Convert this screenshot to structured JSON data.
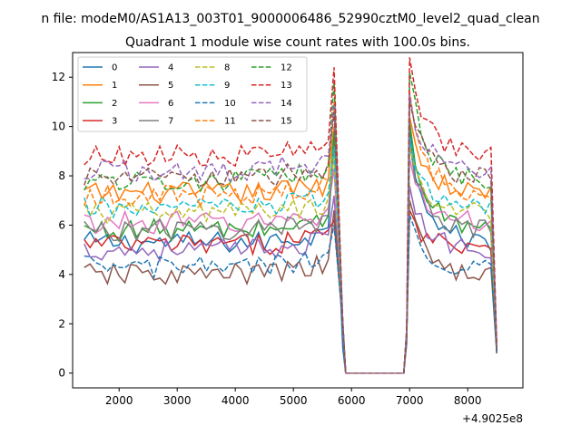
{
  "figure": {
    "suptitle": "n file: modeM0/AS1A13_003T01_9000006486_52990cztM0_level2_quad_clean",
    "title": "Quadrant 1 module wise count rates with 100.0s bins."
  },
  "chart_data": {
    "type": "line",
    "title": "Quadrant 1 module wise count rates with 100.0s bins.",
    "xlabel": "",
    "ylabel": "",
    "x_offset_label": "+4.9025e8",
    "xlim": [
      1200,
      8950
    ],
    "ylim": [
      -0.6,
      13.0
    ],
    "x_ticks": [
      2000,
      3000,
      4000,
      5000,
      6000,
      7000,
      8000
    ],
    "y_ticks": [
      0,
      2,
      4,
      6,
      8,
      10,
      12
    ],
    "x_tick_labels": [
      "2000",
      "3000",
      "4000",
      "5000",
      "6000",
      "7000",
      "8000"
    ],
    "y_tick_labels": [
      "0",
      "2",
      "4",
      "6",
      "8",
      "10",
      "12"
    ],
    "grid": false,
    "legend": {
      "placement": "upper-left",
      "columns": 4
    },
    "segments": {
      "seg1": {
        "start": 1400,
        "step": 100,
        "count": 44
      },
      "gap": [
        5900,
        6900
      ],
      "seg2": {
        "start": 7000,
        "step": 100,
        "count": 16
      }
    },
    "series": [
      {
        "name": "0",
        "color": "#1f77b4",
        "dash": "solid",
        "base": 5.3,
        "peak": 9.5,
        "drop": 1.0,
        "rise": 1.2,
        "end": 0.8
      },
      {
        "name": "1",
        "color": "#ff7f0e",
        "dash": "solid",
        "base": 7.3,
        "peak": 10.0,
        "drop": 2.0,
        "rise": 1.6,
        "end": 1.0
      },
      {
        "name": "2",
        "color": "#2ca02c",
        "dash": "solid",
        "base": 5.8,
        "peak": 9.8,
        "drop": 2.0,
        "rise": 1.7,
        "end": 0.9
      },
      {
        "name": "3",
        "color": "#d62728",
        "dash": "solid",
        "base": 5.2,
        "peak": 6.2,
        "drop": 2.0,
        "rise": 1.4,
        "end": 0.9
      },
      {
        "name": "4",
        "color": "#9467bd",
        "dash": "solid",
        "base": 5.0,
        "peak": 7.2,
        "drop": 2.1,
        "rise": 1.5,
        "end": 0.9
      },
      {
        "name": "5",
        "color": "#8c564b",
        "dash": "solid",
        "base": 4.0,
        "peak": 6.6,
        "drop": 2.0,
        "rise": 1.7,
        "end": 0.8
      },
      {
        "name": "6",
        "color": "#e377c2",
        "dash": "solid",
        "base": 6.1,
        "peak": 8.3,
        "drop": 2.0,
        "rise": 1.6,
        "end": 1.1
      },
      {
        "name": "7",
        "color": "#7f7f7f",
        "dash": "solid",
        "base": 5.8,
        "peak": 9.0,
        "drop": 2.0,
        "rise": 1.5,
        "end": 1.0
      },
      {
        "name": "8",
        "color": "#bcbd22",
        "dash": "dashed",
        "base": 6.5,
        "peak": 8.8,
        "drop": 2.0,
        "rise": 1.6,
        "end": 1.0
      },
      {
        "name": "9",
        "color": "#17becf",
        "dash": "dashed",
        "base": 6.7,
        "peak": 9.2,
        "drop": 2.0,
        "rise": 1.6,
        "end": 1.0
      },
      {
        "name": "10",
        "color": "#1f77b4",
        "dash": "dashed",
        "base": 4.3,
        "peak": 6.0,
        "drop": 2.0,
        "rise": 1.5,
        "end": 0.9
      },
      {
        "name": "11",
        "color": "#ff7f0e",
        "dash": "dashed",
        "base": 7.2,
        "peak": 11.0,
        "drop": 2.0,
        "rise": 1.6,
        "end": 1.0
      },
      {
        "name": "12",
        "color": "#2ca02c",
        "dash": "dashed",
        "base": 7.8,
        "peak": 11.8,
        "drop": 2.0,
        "rise": 1.7,
        "end": 1.1
      },
      {
        "name": "13",
        "color": "#d62728",
        "dash": "dashed",
        "base": 8.8,
        "peak": 12.4,
        "drop": 2.0,
        "rise": 1.8,
        "end": 1.2
      },
      {
        "name": "14",
        "color": "#9467bd",
        "dash": "dashed",
        "base": 8.2,
        "peak": 10.9,
        "drop": 2.0,
        "rise": 1.6,
        "end": 1.1
      },
      {
        "name": "15",
        "color": "#8c564b",
        "dash": "dashed",
        "base": 7.9,
        "peak": 10.6,
        "drop": 2.0,
        "rise": 1.6,
        "end": 1.0
      }
    ]
  }
}
